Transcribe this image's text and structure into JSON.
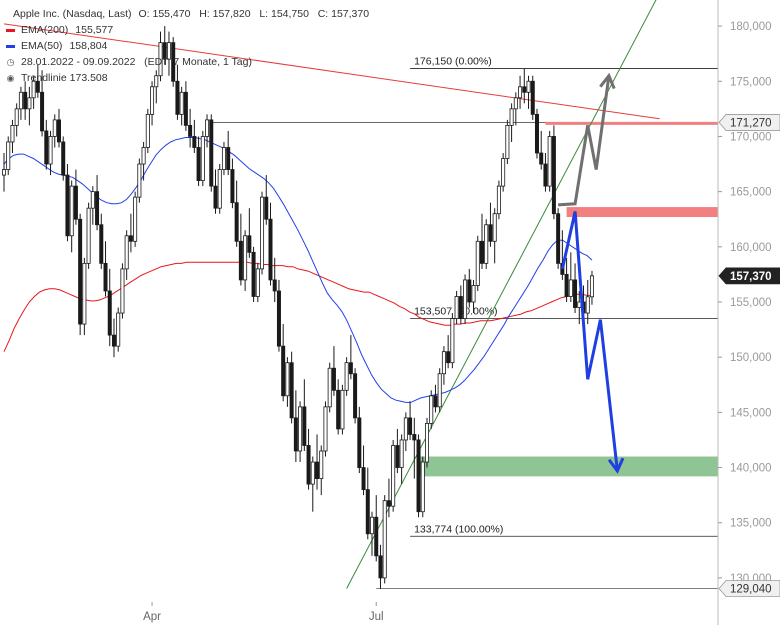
{
  "legend": {
    "instrument": "Apple Inc. (Nasdaq, Last)",
    "ohlc": "O: 155,470   H: 157,820   L: 154,750   C: 157,370",
    "ema200_label": "EMA(200)",
    "ema200_value": "155,577",
    "ema50_label": "EMA(50)",
    "ema50_value": "158,804",
    "period": "28.01.2022 - 09.09.2022   (EDT, 7 Monate, 1 Tag)",
    "trendline": "Trendlinie  173.508"
  },
  "colors": {
    "ema200": "#e8171d",
    "ema50": "#2340e8",
    "trendline_red": "#e83a3a",
    "trendline_green": "#3a8a3a",
    "candle": "#1a1a1a",
    "zone_red": "#f28080",
    "zone_green": "#8fc495",
    "arrow_blue": "#1f3fe0",
    "arrow_gray": "#707070",
    "badge_dark": "#222222"
  },
  "chart_data": {
    "type": "candlestick",
    "ylim": [
      128,
      182
    ],
    "yticks": [
      "130,000",
      "135,000",
      "140,000",
      "145,000",
      "150,000",
      "155,000",
      "160,000",
      "165,000",
      "170,000",
      "175,000",
      "180,000"
    ],
    "ytick_values": [
      130,
      135,
      140,
      145,
      150,
      155,
      160,
      165,
      170,
      175,
      180
    ],
    "xticks": [
      "Apr",
      "Jul"
    ],
    "xtick_index": [
      35,
      88
    ],
    "fib_levels": [
      {
        "label": "176,150 (0.00%)",
        "value": 176.15
      },
      {
        "label": "153,507 (50.00%)",
        "value": 153.507
      },
      {
        "label": "133,774 (100.00%)",
        "value": 133.774
      }
    ],
    "price_badges": [
      {
        "label": "171,270",
        "value": 171.27,
        "style": "light"
      },
      {
        "label": "157,370",
        "value": 157.37,
        "style": "dark"
      },
      {
        "label": "129,040",
        "value": 129.04,
        "style": "light"
      }
    ],
    "horizontal_lines": [
      171.27,
      129.04
    ],
    "zones": [
      {
        "name": "resistance",
        "from": 162.7,
        "to": 163.6
      },
      {
        "name": "target",
        "from": 139.2,
        "to": 141.0
      }
    ],
    "trendlines": [
      {
        "name": "red",
        "from": {
          "index": 0,
          "value": 180.2
        },
        "to": {
          "index": 155,
          "value": 171.6
        }
      },
      {
        "name": "green",
        "from": {
          "index": 81,
          "value": 129.04
        },
        "to": {
          "index": 155,
          "value": 183.0
        }
      }
    ],
    "arrows": {
      "blue": [
        [
          132,
          158.0
        ],
        [
          135,
          163.2
        ],
        [
          138,
          148.0
        ],
        [
          141,
          153.4
        ],
        [
          145,
          139.7
        ]
      ],
      "gray": [
        [
          131,
          163.8
        ],
        [
          135,
          163.9
        ],
        [
          138,
          171.0
        ],
        [
          140,
          167.0
        ],
        [
          143,
          175.5
        ]
      ]
    },
    "ema200": [
      150.5,
      151.5,
      152.6,
      153.5,
      154.3,
      155.0,
      155.5,
      155.9,
      156.1,
      156.2,
      156.2,
      156.1,
      155.9,
      155.7,
      155.5,
      155.3,
      155.2,
      155.1,
      155.1,
      155.2,
      155.4,
      155.6,
      155.9,
      156.2,
      156.5,
      156.8,
      157.1,
      157.4,
      157.6,
      157.8,
      158.0,
      158.2,
      158.3,
      158.4,
      158.5,
      158.5,
      158.6,
      158.6,
      158.6,
      158.6,
      158.6,
      158.6,
      158.6,
      158.6,
      158.6,
      158.6,
      158.6,
      158.6,
      158.6,
      158.5,
      158.5,
      158.4,
      158.4,
      158.3,
      158.3,
      158.3,
      158.2,
      158.2,
      158.0,
      157.9,
      157.8,
      157.6,
      157.4,
      157.2,
      157.0,
      156.8,
      156.6,
      156.4,
      156.2,
      156.1,
      156.0,
      155.9,
      155.9,
      155.7,
      155.5,
      155.3,
      155.1,
      154.9,
      154.6,
      154.4,
      154.1,
      153.9,
      153.6,
      153.4,
      153.2,
      153.1,
      153.0,
      152.9,
      152.9,
      153.0,
      153.0,
      153.1,
      153.1,
      153.2,
      153.3,
      153.3,
      153.3,
      153.4,
      153.5,
      153.6,
      153.7,
      153.8,
      153.9,
      154.1,
      154.2,
      154.4,
      154.6,
      154.8,
      155.0,
      155.2,
      155.4,
      155.5,
      155.6,
      155.7,
      155.7,
      155.6,
      155.6
    ],
    "ema50": [
      167.5,
      168.0,
      168.3,
      168.4,
      168.4,
      168.2,
      168.0,
      167.7,
      167.4,
      167.1,
      166.8,
      166.6,
      166.5,
      166.4,
      166.3,
      166.0,
      165.7,
      165.3,
      164.9,
      164.5,
      164.2,
      164.0,
      163.9,
      163.9,
      164.0,
      164.3,
      164.8,
      165.4,
      166.1,
      166.9,
      167.6,
      168.3,
      168.8,
      169.2,
      169.5,
      169.7,
      169.8,
      169.9,
      169.9,
      169.9,
      169.8,
      169.7,
      169.5,
      169.3,
      169.1,
      168.9,
      168.6,
      168.3,
      167.9,
      167.5,
      167.1,
      166.8,
      166.5,
      166.2,
      165.8,
      165.3,
      164.6,
      163.9,
      163.1,
      162.3,
      161.5,
      160.6,
      159.7,
      158.7,
      157.7,
      156.7,
      155.8,
      155.2,
      154.7,
      154.1,
      153.3,
      152.3,
      151.3,
      150.2,
      149.3,
      148.4,
      147.7,
      147.1,
      146.7,
      146.3,
      146.1,
      146.0,
      145.9,
      145.9,
      146.1,
      146.3,
      146.4,
      146.5,
      146.6,
      146.7,
      146.8,
      147.0,
      147.2,
      147.5,
      147.9,
      148.4,
      148.9,
      149.5,
      150.1,
      150.8,
      151.5,
      152.2,
      152.9,
      153.7,
      154.4,
      155.1,
      155.8,
      156.5,
      157.3,
      158.1,
      158.8,
      159.6,
      160.2,
      160.6,
      160.6,
      160.3,
      160.0,
      159.7,
      159.4,
      159.2,
      158.8
    ],
    "candles": [
      [
        0,
        166.5,
        168.5,
        165.0,
        167.0
      ],
      [
        1,
        167.0,
        170.0,
        166.5,
        169.5
      ],
      [
        2,
        169.5,
        171.5,
        168.5,
        171.0
      ],
      [
        3,
        171.0,
        173.0,
        170.0,
        172.5
      ],
      [
        4,
        172.5,
        174.5,
        171.5,
        174.0
      ],
      [
        5,
        174.0,
        175.0,
        171.5,
        172.5
      ],
      [
        6,
        172.5,
        174.5,
        171.0,
        173.5
      ],
      [
        7,
        173.5,
        175.5,
        172.5,
        175.0
      ],
      [
        8,
        175.0,
        176.5,
        173.5,
        174.0
      ],
      [
        9,
        174.0,
        176.0,
        170.0,
        170.5
      ],
      [
        10,
        170.5,
        171.5,
        167.0,
        167.5
      ],
      [
        11,
        167.5,
        170.5,
        166.5,
        170.0
      ],
      [
        12,
        170.0,
        172.0,
        169.0,
        171.5
      ],
      [
        13,
        171.5,
        172.5,
        169.0,
        169.5
      ],
      [
        14,
        169.5,
        170.0,
        166.0,
        166.5
      ],
      [
        15,
        166.5,
        167.5,
        160.5,
        161.0
      ],
      [
        16,
        161.0,
        166.0,
        159.5,
        165.5
      ],
      [
        17,
        165.5,
        167.0,
        162.0,
        162.5
      ],
      [
        18,
        162.5,
        163.0,
        152.0,
        153.0
      ],
      [
        19,
        153.0,
        159.0,
        152.0,
        158.5
      ],
      [
        20,
        158.5,
        164.0,
        158.0,
        163.5
      ],
      [
        21,
        163.5,
        165.5,
        162.0,
        165.0
      ],
      [
        22,
        165.0,
        166.5,
        161.5,
        162.0
      ],
      [
        23,
        162.0,
        163.0,
        158.0,
        158.5
      ],
      [
        24,
        158.5,
        160.5,
        155.5,
        156.0
      ],
      [
        25,
        156.0,
        158.0,
        151.0,
        152.0
      ],
      [
        26,
        152.0,
        153.5,
        150.0,
        151.0
      ],
      [
        27,
        151.0,
        154.5,
        150.5,
        154.0
      ],
      [
        28,
        154.0,
        158.5,
        153.5,
        158.0
      ],
      [
        29,
        158.0,
        161.5,
        157.0,
        161.0
      ],
      [
        30,
        161.0,
        163.0,
        159.5,
        160.5
      ],
      [
        31,
        160.5,
        165.0,
        160.0,
        164.5
      ],
      [
        32,
        164.5,
        168.0,
        164.0,
        167.5
      ],
      [
        33,
        167.5,
        169.5,
        166.0,
        169.0
      ],
      [
        34,
        169.0,
        172.5,
        168.5,
        172.0
      ],
      [
        35,
        172.0,
        175.0,
        171.0,
        174.5
      ],
      [
        36,
        174.5,
        176.0,
        173.0,
        175.5
      ],
      [
        37,
        175.5,
        179.5,
        175.0,
        178.5
      ],
      [
        38,
        178.5,
        180.0,
        176.5,
        177.0
      ],
      [
        39,
        177.0,
        179.5,
        175.5,
        178.5
      ],
      [
        40,
        178.5,
        179.0,
        174.5,
        175.0
      ],
      [
        41,
        175.0,
        176.5,
        171.5,
        172.0
      ],
      [
        42,
        172.0,
        174.5,
        171.0,
        174.0
      ],
      [
        43,
        174.0,
        175.0,
        170.5,
        171.0
      ],
      [
        44,
        171.0,
        172.5,
        169.0,
        170.0
      ],
      [
        45,
        170.0,
        171.5,
        168.5,
        169.0
      ],
      [
        46,
        169.0,
        170.0,
        165.5,
        166.0
      ],
      [
        47,
        166.0,
        170.5,
        165.5,
        170.0
      ],
      [
        48,
        170.0,
        172.0,
        169.0,
        171.5
      ],
      [
        49,
        171.5,
        172.0,
        165.0,
        165.5
      ],
      [
        50,
        165.5,
        167.0,
        163.0,
        163.5
      ],
      [
        51,
        163.5,
        167.5,
        163.0,
        167.0
      ],
      [
        52,
        167.0,
        169.5,
        166.5,
        169.0
      ],
      [
        53,
        169.0,
        170.5,
        166.5,
        167.0
      ],
      [
        54,
        167.0,
        168.0,
        163.5,
        164.0
      ],
      [
        55,
        164.0,
        166.0,
        160.0,
        160.5
      ],
      [
        56,
        160.5,
        163.0,
        156.5,
        157.0
      ],
      [
        57,
        157.0,
        161.5,
        156.0,
        161.0
      ],
      [
        58,
        161.0,
        163.5,
        159.0,
        159.5
      ],
      [
        59,
        159.5,
        160.0,
        155.0,
        155.5
      ],
      [
        60,
        155.5,
        158.5,
        155.0,
        158.0
      ],
      [
        61,
        158.0,
        165.0,
        157.5,
        164.5
      ],
      [
        62,
        164.5,
        166.5,
        162.0,
        162.5
      ],
      [
        63,
        162.5,
        164.0,
        156.5,
        157.0
      ],
      [
        64,
        157.0,
        159.0,
        155.0,
        156.0
      ],
      [
        65,
        156.0,
        157.0,
        150.5,
        151.0
      ],
      [
        66,
        151.0,
        153.0,
        146.0,
        146.5
      ],
      [
        67,
        146.5,
        150.0,
        145.5,
        149.5
      ],
      [
        68,
        149.5,
        150.5,
        144.0,
        144.5
      ],
      [
        69,
        144.5,
        147.0,
        140.5,
        141.5
      ],
      [
        70,
        141.5,
        146.0,
        140.5,
        145.5
      ],
      [
        71,
        145.5,
        148.0,
        141.5,
        142.0
      ],
      [
        72,
        142.0,
        143.5,
        138.0,
        138.5
      ],
      [
        73,
        138.5,
        141.0,
        136.0,
        140.5
      ],
      [
        74,
        140.5,
        143.0,
        138.0,
        139.0
      ],
      [
        75,
        139.0,
        142.0,
        137.5,
        141.5
      ],
      [
        76,
        141.5,
        146.0,
        141.0,
        145.5
      ],
      [
        77,
        145.5,
        149.5,
        145.0,
        149.0
      ],
      [
        78,
        149.0,
        151.0,
        146.5,
        147.0
      ],
      [
        79,
        147.0,
        148.0,
        143.0,
        143.5
      ],
      [
        80,
        143.5,
        147.5,
        143.0,
        147.0
      ],
      [
        81,
        147.0,
        150.0,
        146.5,
        149.5
      ],
      [
        82,
        149.5,
        152.0,
        148.0,
        148.5
      ],
      [
        83,
        148.5,
        149.0,
        144.0,
        144.5
      ],
      [
        84,
        144.5,
        145.5,
        139.5,
        140.0
      ],
      [
        85,
        140.0,
        142.0,
        137.5,
        138.0
      ],
      [
        86,
        138.0,
        140.0,
        133.5,
        134.0
      ],
      [
        87,
        134.0,
        136.0,
        132.0,
        135.5
      ],
      [
        88,
        135.5,
        137.5,
        131.5,
        132.0
      ],
      [
        89,
        132.0,
        133.0,
        129.0,
        130.0
      ],
      [
        90,
        130.0,
        137.5,
        129.5,
        137.0
      ],
      [
        91,
        137.0,
        139.0,
        135.5,
        136.5
      ],
      [
        92,
        136.5,
        142.5,
        136.0,
        142.0
      ],
      [
        93,
        142.0,
        143.5,
        139.5,
        140.0
      ],
      [
        94,
        140.0,
        143.0,
        138.5,
        142.5
      ],
      [
        95,
        142.5,
        145.0,
        141.5,
        144.5
      ],
      [
        96,
        144.5,
        146.0,
        142.5,
        143.0
      ],
      [
        97,
        143.0,
        144.5,
        139.0,
        142.5
      ],
      [
        98,
        142.5,
        143.0,
        135.5,
        136.0
      ],
      [
        99,
        136.0,
        141.0,
        135.5,
        140.5
      ],
      [
        100,
        140.5,
        144.5,
        140.0,
        144.0
      ],
      [
        101,
        144.0,
        147.0,
        143.5,
        146.5
      ],
      [
        102,
        146.5,
        147.5,
        145.0,
        145.5
      ],
      [
        103,
        145.5,
        149.0,
        145.0,
        148.5
      ],
      [
        104,
        148.5,
        151.0,
        147.5,
        150.5
      ],
      [
        105,
        150.5,
        152.0,
        149.0,
        149.5
      ],
      [
        106,
        149.5,
        154.0,
        149.0,
        153.5
      ],
      [
        107,
        153.5,
        156.0,
        153.0,
        155.5
      ],
      [
        108,
        155.5,
        156.5,
        153.0,
        153.5
      ],
      [
        109,
        153.5,
        157.5,
        153.0,
        157.0
      ],
      [
        110,
        157.0,
        158.0,
        154.5,
        155.0
      ],
      [
        111,
        155.0,
        157.0,
        154.0,
        156.5
      ],
      [
        112,
        156.5,
        161.0,
        156.0,
        160.5
      ],
      [
        113,
        160.5,
        163.0,
        158.0,
        158.5
      ],
      [
        114,
        158.5,
        162.5,
        158.0,
        162.0
      ],
      [
        115,
        162.0,
        164.0,
        160.0,
        160.5
      ],
      [
        116,
        160.5,
        163.5,
        158.5,
        163.0
      ],
      [
        117,
        163.0,
        166.0,
        162.5,
        165.5
      ],
      [
        118,
        165.5,
        168.5,
        165.0,
        168.0
      ],
      [
        119,
        168.0,
        171.5,
        167.5,
        171.0
      ],
      [
        120,
        171.0,
        173.0,
        169.5,
        172.5
      ],
      [
        121,
        172.5,
        174.0,
        171.0,
        173.5
      ],
      [
        122,
        173.5,
        175.5,
        172.5,
        174.5
      ],
      [
        123,
        174.5,
        176.15,
        173.0,
        174.0
      ],
      [
        124,
        174.0,
        175.5,
        172.5,
        175.0
      ],
      [
        125,
        175.0,
        175.5,
        171.5,
        172.0
      ],
      [
        126,
        172.0,
        172.5,
        168.0,
        168.5
      ],
      [
        127,
        168.5,
        170.5,
        167.0,
        167.5
      ],
      [
        128,
        167.5,
        168.5,
        165.0,
        165.5
      ],
      [
        129,
        165.5,
        170.5,
        165.0,
        170.0
      ],
      [
        130,
        170.0,
        171.0,
        162.5,
        163.0
      ],
      [
        131,
        163.0,
        163.5,
        158.0,
        158.5
      ],
      [
        132,
        158.5,
        161.5,
        157.0,
        157.5
      ],
      [
        133,
        157.5,
        159.0,
        155.0,
        155.5
      ],
      [
        134,
        155.5,
        159.5,
        155.0,
        157.0
      ],
      [
        135,
        157.0,
        158.5,
        154.0,
        154.5
      ],
      [
        136,
        154.5,
        156.0,
        153.0,
        155.0
      ],
      [
        137,
        155.0,
        156.5,
        153.5,
        154.0
      ],
      [
        138,
        154.0,
        157.0,
        153.0,
        155.47
      ],
      [
        139,
        155.47,
        157.82,
        154.75,
        157.37
      ]
    ]
  }
}
